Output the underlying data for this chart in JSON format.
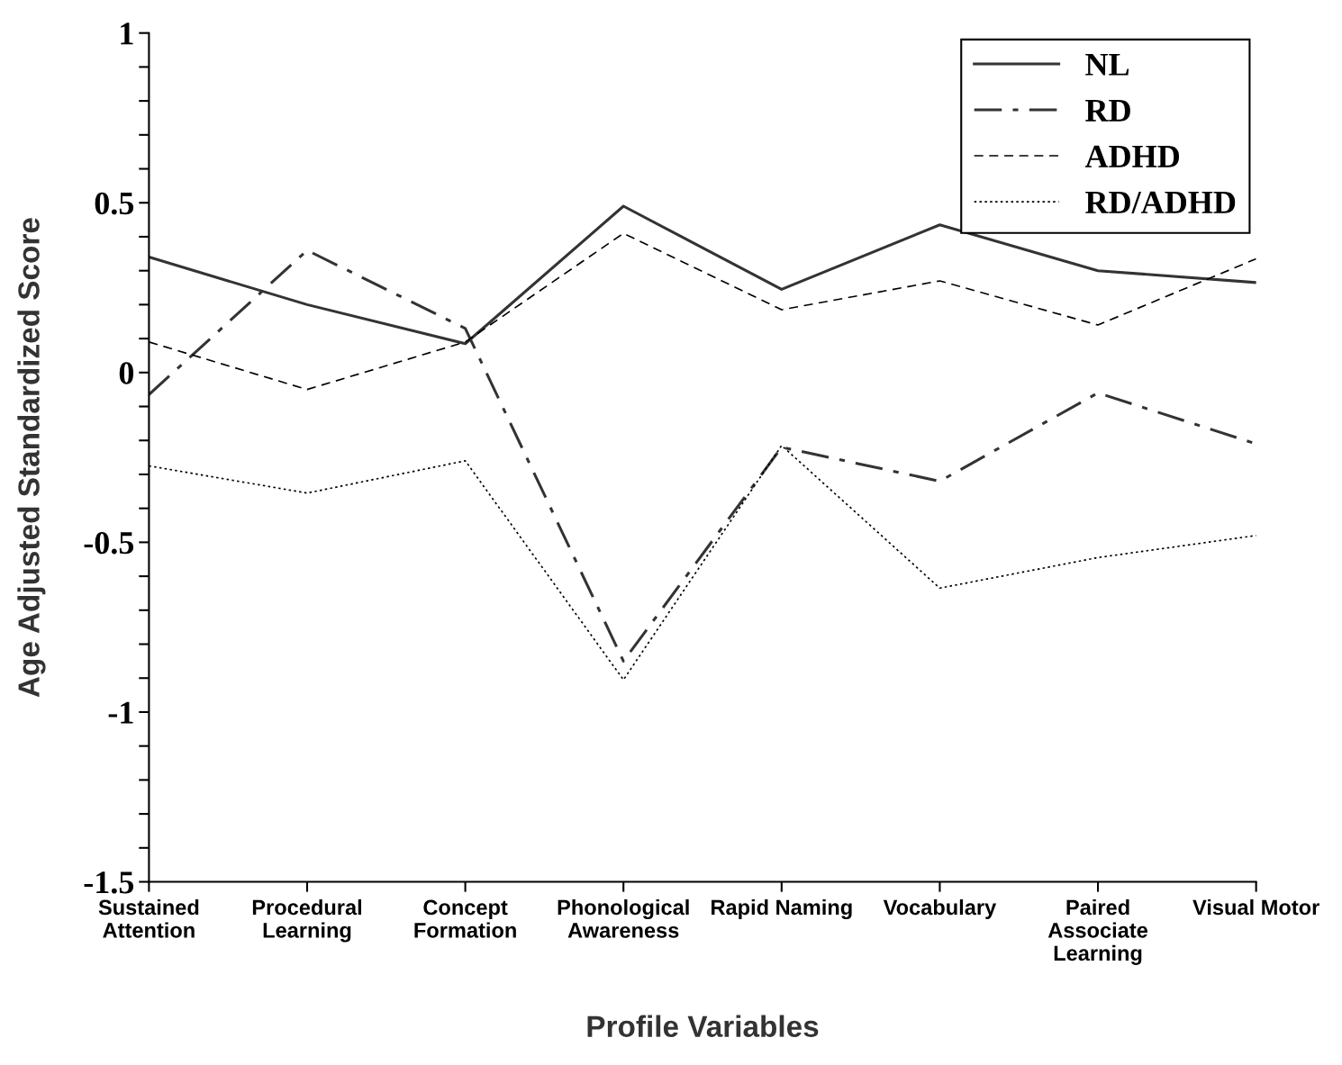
{
  "chart_data": {
    "type": "line",
    "xlabel": "Profile Variables",
    "ylabel": "Age Adjusted Standardized Score",
    "categories": [
      "Sustained\nAttention",
      "Procedural\nLearning",
      "Concept\nFormation",
      "Phonological\nAwareness",
      "Rapid Naming",
      "Vocabulary",
      "Paired\nAssociate\nLearning",
      "Visual Motor"
    ],
    "series": [
      {
        "name": "NL",
        "color": "#333333",
        "line_style": "solid",
        "values": [
          0.34,
          0.2,
          0.085,
          0.49,
          0.245,
          0.435,
          0.3,
          0.265
        ]
      },
      {
        "name": "RD",
        "color": "#333333",
        "line_style": "dashdot",
        "values": [
          -0.065,
          0.36,
          0.13,
          -0.85,
          -0.22,
          -0.32,
          -0.06,
          -0.21
        ]
      },
      {
        "name": "ADHD",
        "color": "#000000",
        "line_style": "dashed",
        "values": [
          0.09,
          -0.05,
          0.09,
          0.41,
          0.185,
          0.27,
          0.14,
          0.335
        ]
      },
      {
        "name": "RD/ADHD",
        "color": "#000000",
        "line_style": "dotted",
        "values": [
          -0.275,
          -0.355,
          -0.26,
          -0.905,
          -0.215,
          -0.635,
          -0.545,
          -0.48
        ]
      }
    ],
    "ylim": [
      -1.5,
      1
    ],
    "yticks": [
      1,
      {
        "value": 0.9,
        "label": null
      },
      {
        "value": 0.8,
        "label": null
      },
      {
        "value": 0.7,
        "label": null
      },
      {
        "value": 0.6,
        "label": null
      },
      0.5,
      {
        "value": 0.4,
        "label": null
      },
      {
        "value": 0.3,
        "label": null
      },
      {
        "value": 0.2,
        "label": null
      },
      {
        "value": 0.1,
        "label": null
      },
      0,
      {
        "value": -0.1,
        "label": null
      },
      {
        "value": -0.2,
        "label": null
      },
      {
        "value": -0.3,
        "label": null
      },
      {
        "value": -0.4,
        "label": null
      },
      {
        "value": -0.5,
        "label": "-0.5"
      },
      {
        "value": -0.6,
        "label": null
      },
      {
        "value": -0.7,
        "label": null
      },
      {
        "value": -0.8,
        "label": null
      },
      {
        "value": -0.9,
        "label": null
      },
      {
        "value": -1,
        "label": "-1"
      },
      {
        "value": -1.1,
        "label": null
      },
      {
        "value": -1.2,
        "label": null
      },
      {
        "value": -1.3,
        "label": null
      },
      {
        "value": -1.4,
        "label": null
      },
      {
        "value": -1.5,
        "label": "-1.5"
      }
    ],
    "grid": false,
    "legend": "top right",
    "marker": "none"
  }
}
